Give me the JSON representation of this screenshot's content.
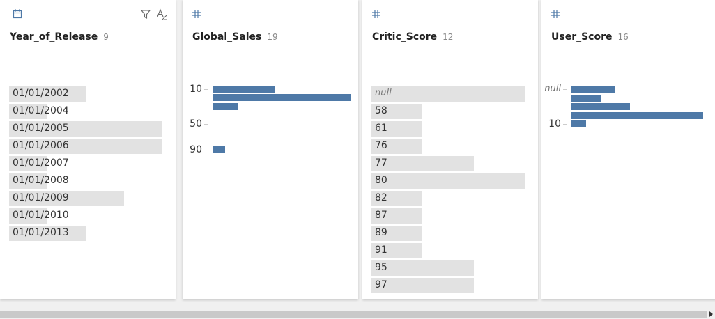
{
  "columns": [
    {
      "name": "Year_of_Release",
      "count": 9,
      "type": "list",
      "items": [
        {
          "label": "01/01/2002",
          "count": 2
        },
        {
          "label": "01/01/2004",
          "count": 1
        },
        {
          "label": "01/01/2005",
          "count": 4
        },
        {
          "label": "01/01/2006",
          "count": 4
        },
        {
          "label": "01/01/2007",
          "count": 1
        },
        {
          "label": "01/01/2008",
          "count": 1
        },
        {
          "label": "01/01/2009",
          "count": 3
        },
        {
          "label": "01/01/2010",
          "count": 1
        },
        {
          "label": "01/01/2013",
          "count": 2
        }
      ]
    },
    {
      "name": "Global_Sales",
      "count": 19,
      "type": "histogram",
      "categories": [
        "10",
        null,
        null,
        null,
        "50",
        null,
        null,
        "90"
      ],
      "values": [
        5,
        11,
        2,
        0,
        0,
        0,
        0,
        1
      ]
    },
    {
      "name": "Critic_Score",
      "count": 12,
      "type": "list",
      "items": [
        {
          "label": "null",
          "count": 3
        },
        {
          "label": "58",
          "count": 1
        },
        {
          "label": "61",
          "count": 1
        },
        {
          "label": "76",
          "count": 1
        },
        {
          "label": "77",
          "count": 2
        },
        {
          "label": "80",
          "count": 3
        },
        {
          "label": "82",
          "count": 1
        },
        {
          "label": "87",
          "count": 1
        },
        {
          "label": "89",
          "count": 1
        },
        {
          "label": "91",
          "count": 1
        },
        {
          "label": "95",
          "count": 2
        },
        {
          "label": "97",
          "count": 2
        }
      ]
    },
    {
      "name": "User_Score",
      "count": 16,
      "type": "histogram",
      "categories": [
        "null",
        null,
        null,
        null,
        "10"
      ],
      "values": [
        3,
        2,
        4,
        9,
        1
      ]
    }
  ]
}
